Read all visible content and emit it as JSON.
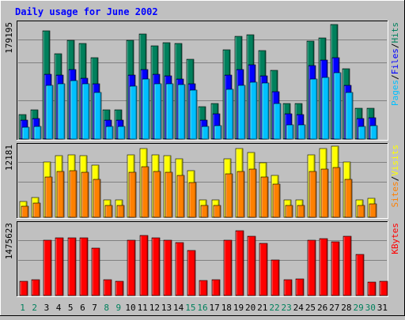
{
  "colors": {
    "background": "#c0c0c0",
    "plot_background": "#c0c0c0",
    "grid": "#808080",
    "title": "#0000ff",
    "hits": "#00805c",
    "files": "#0000ff",
    "pages": "#00c0ff",
    "visits": "#ffff00",
    "sites": "#ff8000",
    "kbytes": "#ff0000",
    "weekday_label": "#000000",
    "weekend_label": "#00805c",
    "label_separator": "#000000"
  },
  "chart_data": {
    "type": "bar",
    "title": "Daily usage for June 2002",
    "x": [
      "1",
      "2",
      "3",
      "4",
      "5",
      "6",
      "7",
      "8",
      "9",
      "10",
      "11",
      "12",
      "13",
      "14",
      "15",
      "16",
      "17",
      "18",
      "19",
      "20",
      "21",
      "22",
      "23",
      "24",
      "25",
      "26",
      "27",
      "28",
      "29",
      "30",
      "31"
    ],
    "weekend_days": [
      "1",
      "2",
      "8",
      "9",
      "15",
      "16",
      "22",
      "23",
      "29",
      "30"
    ],
    "panels": [
      {
        "name": "hits-files-pages",
        "ymax_label": "179195",
        "ylim": [
          0,
          179195
        ],
        "legend": [
          {
            "label": "Pages",
            "color_key": "pages"
          },
          {
            "label": "/",
            "color_key": "label_separator"
          },
          {
            "label": "Files",
            "color_key": "files"
          },
          {
            "label": "/",
            "color_key": "label_separator"
          },
          {
            "label": "Hits",
            "color_key": "hits"
          }
        ],
        "series": [
          {
            "name": "Hits",
            "color_key": "hits",
            "values": [
              38000,
              46000,
              171000,
              134000,
              155000,
              151000,
              128000,
              46000,
              46000,
              155000,
              166000,
              147000,
              152000,
              151000,
              126000,
              51000,
              56000,
              140000,
              162000,
              164000,
              139000,
              108000,
              56000,
              56000,
              154000,
              159000,
              180000,
              111000,
              48000,
              49000,
              0
            ]
          },
          {
            "name": "Files",
            "color_key": "files",
            "values": [
              30000,
              32000,
              102000,
              101000,
              110000,
              96000,
              87000,
              30000,
              30000,
              101000,
              110000,
              102000,
              100000,
              94000,
              87000,
              30000,
              40000,
              101000,
              109000,
              117000,
              99000,
              75000,
              40000,
              38000,
              116000,
              124000,
              128000,
              85000,
              32000,
              33000,
              0
            ]
          },
          {
            "name": "Pages",
            "color_key": "pages",
            "values": [
              19000,
              20000,
              84000,
              87000,
              92000,
              87000,
              73000,
              20000,
              20000,
              83000,
              94000,
              87000,
              87000,
              86000,
              77000,
              20000,
              21000,
              79000,
              85000,
              90000,
              88000,
              56000,
              23000,
              22000,
              95000,
              97000,
              104000,
              74000,
              20000,
              21000,
              0
            ]
          }
        ]
      },
      {
        "name": "visits-sites",
        "ymax_label": "12181",
        "ylim": [
          0,
          12181
        ],
        "legend": [
          {
            "label": "Sites",
            "color_key": "sites"
          },
          {
            "label": "/",
            "color_key": "label_separator"
          },
          {
            "label": "Visits",
            "color_key": "visits"
          }
        ],
        "series": [
          {
            "name": "Visits",
            "color_key": "visits",
            "values": [
              2800,
              3500,
              9700,
              10800,
              10900,
              10800,
              9100,
              3100,
              3100,
              11000,
              12000,
              11000,
              10800,
              10300,
              8100,
              3000,
              3100,
              10200,
              12000,
              11300,
              9500,
              7300,
              3000,
              3100,
              11000,
              12000,
              12400,
              9700,
              3100,
              3300,
              0
            ]
          },
          {
            "name": "Sites",
            "color_key": "sites",
            "values": [
              2000,
              2500,
              7100,
              8000,
              8100,
              7900,
              6600,
              2100,
              2100,
              7900,
              8800,
              8000,
              7900,
              7400,
              6100,
              2100,
              2100,
              7600,
              8000,
              8400,
              7100,
              5800,
              2100,
              2100,
              8000,
              8400,
              8700,
              6600,
              2100,
              2400,
              0
            ]
          }
        ]
      },
      {
        "name": "kbytes",
        "ymax_label": "1475623",
        "ylim": [
          0,
          1475623
        ],
        "legend": [
          {
            "label": "KBytes",
            "color_key": "kbytes"
          }
        ],
        "series": [
          {
            "name": "KBytes",
            "color_key": "kbytes",
            "values": [
              300000,
              330000,
              1170000,
              1220000,
              1220000,
              1230000,
              1000000,
              340000,
              310000,
              1180000,
              1280000,
              1220000,
              1180000,
              1130000,
              960000,
              320000,
              340000,
              1180000,
              1380000,
              1260000,
              1110000,
              760000,
              340000,
              350000,
              1170000,
              1200000,
              1140000,
              1260000,
              880000,
              290000,
              310000
            ]
          }
        ]
      }
    ]
  }
}
